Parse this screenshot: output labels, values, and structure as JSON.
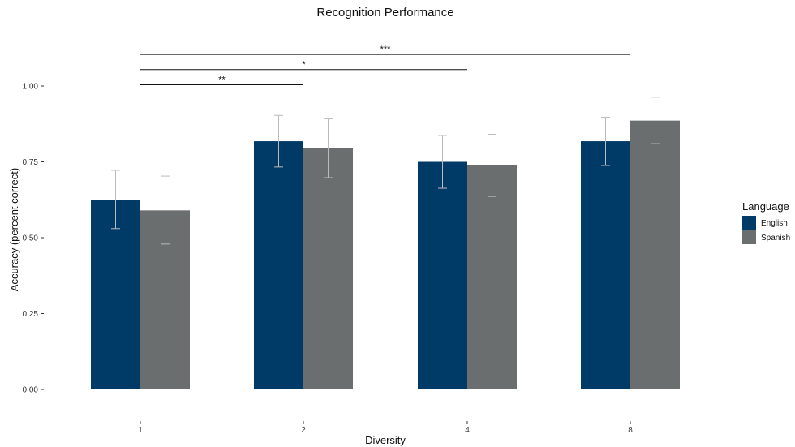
{
  "chart_data": {
    "type": "bar",
    "title": "Recognition Performance",
    "xlabel": "Diversity",
    "ylabel": "Accuracy (percent correct)",
    "ylim": [
      0,
      1.1
    ],
    "yticks": [
      "0.00",
      "0.25",
      "0.50",
      "0.75",
      "1.00"
    ],
    "categories": [
      "1",
      "2",
      "4",
      "8"
    ],
    "series": [
      {
        "name": "English",
        "color": "#003A66",
        "values": [
          0.625,
          0.818,
          0.75,
          0.818
        ],
        "err_low": [
          0.53,
          0.733,
          0.663,
          0.738
        ],
        "err_high": [
          0.722,
          0.903,
          0.837,
          0.897
        ]
      },
      {
        "name": "Spanish",
        "color": "#6B6E6E",
        "values": [
          0.59,
          0.795,
          0.738,
          0.886
        ],
        "err_low": [
          0.479,
          0.698,
          0.636,
          0.81
        ],
        "err_high": [
          0.703,
          0.892,
          0.841,
          0.963
        ]
      }
    ],
    "legend": {
      "title": "Language",
      "position": "right"
    },
    "grid": false,
    "significance": [
      {
        "from": "1",
        "to": "2",
        "y": 1.0,
        "label": "**"
      },
      {
        "from": "1",
        "to": "4",
        "y": 1.05,
        "label": "*"
      },
      {
        "from": "1",
        "to": "8",
        "y": 1.1,
        "label": "***"
      }
    ],
    "error_bar_color": "#BBBBBB"
  }
}
